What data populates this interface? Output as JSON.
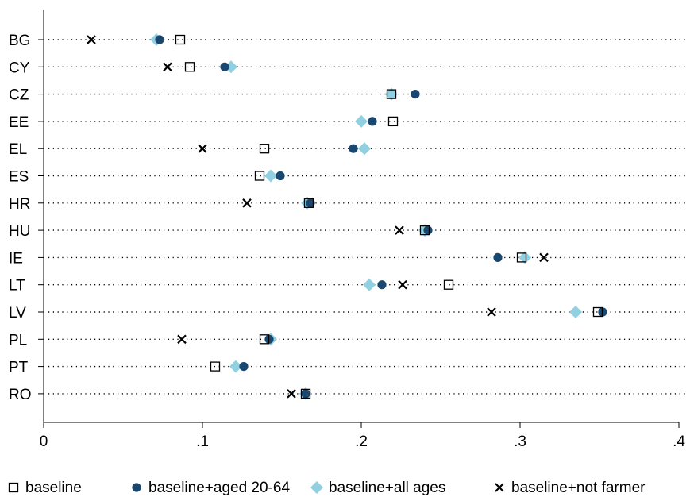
{
  "chart_data": {
    "type": "scatter",
    "title": "",
    "xlabel": "",
    "ylabel": "",
    "xlim": [
      0,
      0.4
    ],
    "x_ticks": [
      {
        "value": 0,
        "label": "0"
      },
      {
        "value": 0.1,
        "label": ".1"
      },
      {
        "value": 0.2,
        "label": ".2"
      },
      {
        "value": 0.3,
        "label": ".3"
      },
      {
        "value": 0.4,
        "label": ".4"
      }
    ],
    "categories": [
      "BG",
      "CY",
      "CZ",
      "EE",
      "EL",
      "ES",
      "HR",
      "HU",
      "IE",
      "LT",
      "LV",
      "PL",
      "PT",
      "RO"
    ],
    "grid": "dotted horizontal line per category",
    "legend_position": "bottom",
    "series": [
      {
        "name": "baseline",
        "marker": "hollow-square",
        "color": "#000000",
        "values": [
          0.086,
          0.092,
          0.219,
          0.22,
          0.139,
          0.136,
          0.167,
          0.24,
          0.301,
          0.255,
          0.349,
          0.139,
          0.108,
          0.165
        ]
      },
      {
        "name": "baseline+aged 20-64",
        "marker": "filled-circle",
        "color": "#1a476f",
        "values": [
          0.073,
          0.114,
          0.234,
          0.207,
          0.195,
          0.149,
          0.168,
          0.242,
          0.286,
          0.213,
          0.352,
          0.142,
          0.126,
          0.165
        ]
      },
      {
        "name": "baseline+all ages",
        "marker": "diamond",
        "color": "#90d0e0",
        "values": [
          0.071,
          0.118,
          0.219,
          0.2,
          0.202,
          0.143,
          0.166,
          0.24,
          0.303,
          0.205,
          0.335,
          0.143,
          0.121,
          0.165
        ]
      },
      {
        "name": "baseline+not farmer",
        "marker": "x",
        "color": "#000000",
        "values": [
          0.03,
          0.078,
          null,
          null,
          0.1,
          null,
          0.128,
          0.224,
          0.315,
          0.226,
          0.282,
          0.087,
          null,
          0.156
        ]
      }
    ]
  }
}
